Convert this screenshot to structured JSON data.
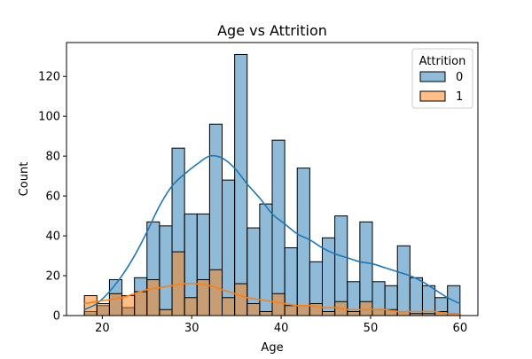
{
  "chart_data": {
    "type": "histogram",
    "title": "Age vs Attrition",
    "xlabel": "Age",
    "ylabel": "Count",
    "xlim": [
      16,
      62
    ],
    "ylim": [
      0,
      137
    ],
    "xticks": [
      20,
      30,
      40,
      50,
      60
    ],
    "yticks": [
      0,
      20,
      40,
      60,
      80,
      100,
      120
    ],
    "bin_start": 18,
    "bin_width": 1.4,
    "legend": {
      "title": "Attrition",
      "position": "top-right"
    },
    "series": [
      {
        "name": "0",
        "color": "#1f77b4",
        "values": [
          2,
          5,
          18,
          4,
          19,
          47,
          45,
          84,
          51,
          51,
          96,
          68,
          131,
          44,
          56,
          88,
          34,
          74,
          27,
          39,
          50,
          17,
          47,
          17,
          15,
          35,
          19,
          15,
          9,
          15
        ],
        "kde_y": [
          3,
          6,
          12,
          20,
          30,
          42,
          55,
          65,
          71,
          76,
          80,
          79,
          74,
          66,
          59,
          51,
          46,
          41,
          38,
          34,
          31,
          29,
          27,
          26,
          24,
          22,
          20,
          17,
          13,
          9,
          6
        ]
      },
      {
        "name": "1",
        "color": "#ff7f0e",
        "values": [
          10,
          6,
          11,
          10,
          12,
          18,
          3,
          32,
          9,
          18,
          23,
          9,
          16,
          6,
          2,
          11,
          5,
          5,
          6,
          2,
          7,
          2,
          7,
          3,
          3,
          2,
          1,
          1,
          2,
          1
        ],
        "kde_y": [
          6,
          7,
          8,
          9,
          11,
          13,
          14,
          15,
          16,
          16,
          15,
          13,
          11,
          9,
          8,
          7,
          6,
          5,
          5,
          4,
          4,
          3,
          3,
          3,
          3,
          2,
          2,
          2,
          2,
          1,
          1
        ]
      }
    ]
  }
}
